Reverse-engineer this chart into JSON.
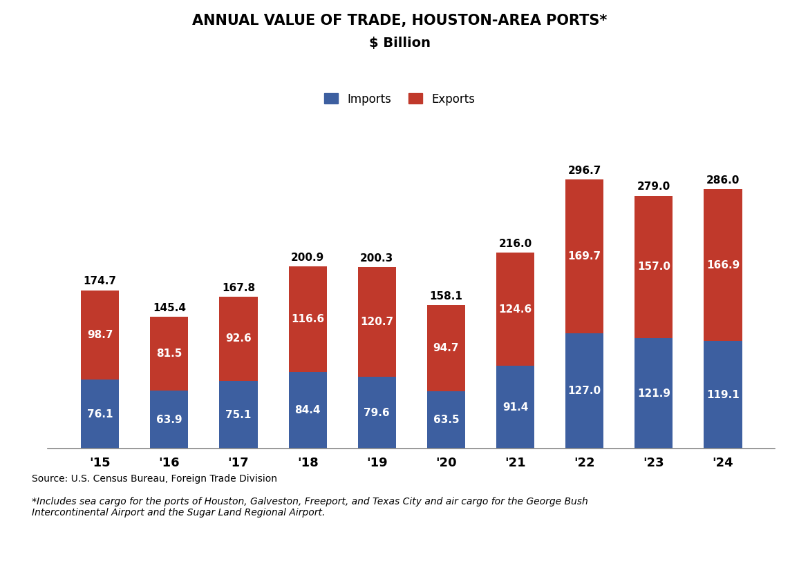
{
  "title_line1": "ANNUAL VALUE OF TRADE, HOUSTON-AREA PORTS*",
  "title_line2": "$ Billion",
  "years": [
    "'15",
    "'16",
    "'17",
    "'18",
    "'19",
    "'20",
    "'21",
    "'22",
    "'23",
    "'24"
  ],
  "imports": [
    76.1,
    63.9,
    75.1,
    84.4,
    79.6,
    63.5,
    91.4,
    127.0,
    121.9,
    119.1
  ],
  "exports": [
    98.7,
    81.5,
    92.6,
    116.6,
    120.7,
    94.7,
    124.6,
    169.7,
    157.0,
    166.9
  ],
  "totals": [
    174.7,
    145.4,
    167.8,
    200.9,
    200.3,
    158.1,
    216.0,
    296.7,
    279.0,
    286.0
  ],
  "import_color": "#3d5fa0",
  "export_color": "#c0392b",
  "background_color": "#ffffff",
  "import_label": "Imports",
  "export_label": "Exports",
  "source_text": "Source: U.S. Census Bureau, Foreign Trade Division",
  "footnote_text": "*Includes sea cargo for the ports of Houston, Galveston, Freeport, and Texas City and air cargo for the George Bush\nIntercontinental Airport and the Sugar Land Regional Airport.",
  "ylim": [
    0,
    340
  ],
  "title_fontsize": 15,
  "subtitle_fontsize": 14,
  "tick_fontsize": 13,
  "legend_fontsize": 12,
  "annotation_fontsize": 11,
  "source_fontsize": 10
}
